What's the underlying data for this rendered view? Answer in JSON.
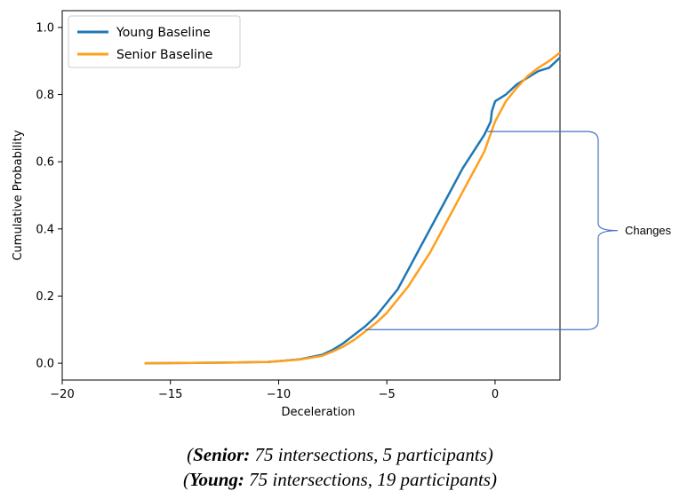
{
  "chart_data": {
    "type": "line",
    "title": "",
    "xlabel": "Deceleration",
    "ylabel": "Cumulative Probability",
    "xlim": [
      -20,
      3
    ],
    "ylim": [
      -0.05,
      1.05
    ],
    "xticks": [
      -20,
      -15,
      -10,
      -5,
      0
    ],
    "xtick_labels": [
      "−20",
      "−15",
      "−10",
      "−5",
      "0"
    ],
    "yticks": [
      0.0,
      0.2,
      0.4,
      0.6,
      0.8,
      1.0
    ],
    "ytick_labels": [
      "0.0",
      "0.2",
      "0.4",
      "0.6",
      "0.8",
      "1.0"
    ],
    "grid": false,
    "legend_position": "top-left",
    "series": [
      {
        "name": "Young Baseline",
        "color": "#1f77b4",
        "x": [
          -16.2,
          -14,
          -12,
          -10.5,
          -10,
          -9,
          -8,
          -7.5,
          -7,
          -6.5,
          -6,
          -5.5,
          -5,
          -4.5,
          -4,
          -3.5,
          -3,
          -2.5,
          -2,
          -1.5,
          -1,
          -0.5,
          -0.2,
          -0.15,
          0,
          0.5,
          1,
          1.5,
          2,
          2.5,
          3
        ],
        "y": [
          0.0,
          0.001,
          0.002,
          0.004,
          0.006,
          0.012,
          0.025,
          0.04,
          0.06,
          0.085,
          0.11,
          0.14,
          0.18,
          0.22,
          0.28,
          0.34,
          0.4,
          0.46,
          0.52,
          0.58,
          0.63,
          0.68,
          0.72,
          0.75,
          0.78,
          0.8,
          0.83,
          0.85,
          0.87,
          0.88,
          0.91
        ]
      },
      {
        "name": "Senior Baseline",
        "color": "#ff9f1c",
        "x": [
          -16.2,
          -14,
          -12,
          -10.5,
          -10,
          -9,
          -8,
          -7.5,
          -7,
          -6.5,
          -6,
          -5.5,
          -5,
          -4.5,
          -4,
          -3.5,
          -3,
          -2.5,
          -2,
          -1.5,
          -1,
          -0.5,
          0,
          0.5,
          1,
          1.5,
          2,
          2.5,
          3
        ],
        "y": [
          0.0,
          0.001,
          0.002,
          0.004,
          0.006,
          0.011,
          0.022,
          0.035,
          0.05,
          0.07,
          0.095,
          0.12,
          0.15,
          0.19,
          0.23,
          0.28,
          0.33,
          0.39,
          0.45,
          0.51,
          0.57,
          0.63,
          0.72,
          0.78,
          0.82,
          0.855,
          0.88,
          0.9,
          0.925
        ]
      }
    ],
    "annotation": {
      "text": "Changes",
      "y_top": 0.69,
      "y_bottom": 0.1,
      "x_top_start": -0.35,
      "x_bottom_start": -6.0,
      "color": "#4472c4"
    }
  },
  "caption": {
    "line1_bold": "Senior:",
    "line1_rest": " 75 intersections, 5 participants)",
    "line1_open": "(",
    "line2_bold": "Young:",
    "line2_rest": " 75 intersections, 19 participants)",
    "line2_open": "("
  }
}
